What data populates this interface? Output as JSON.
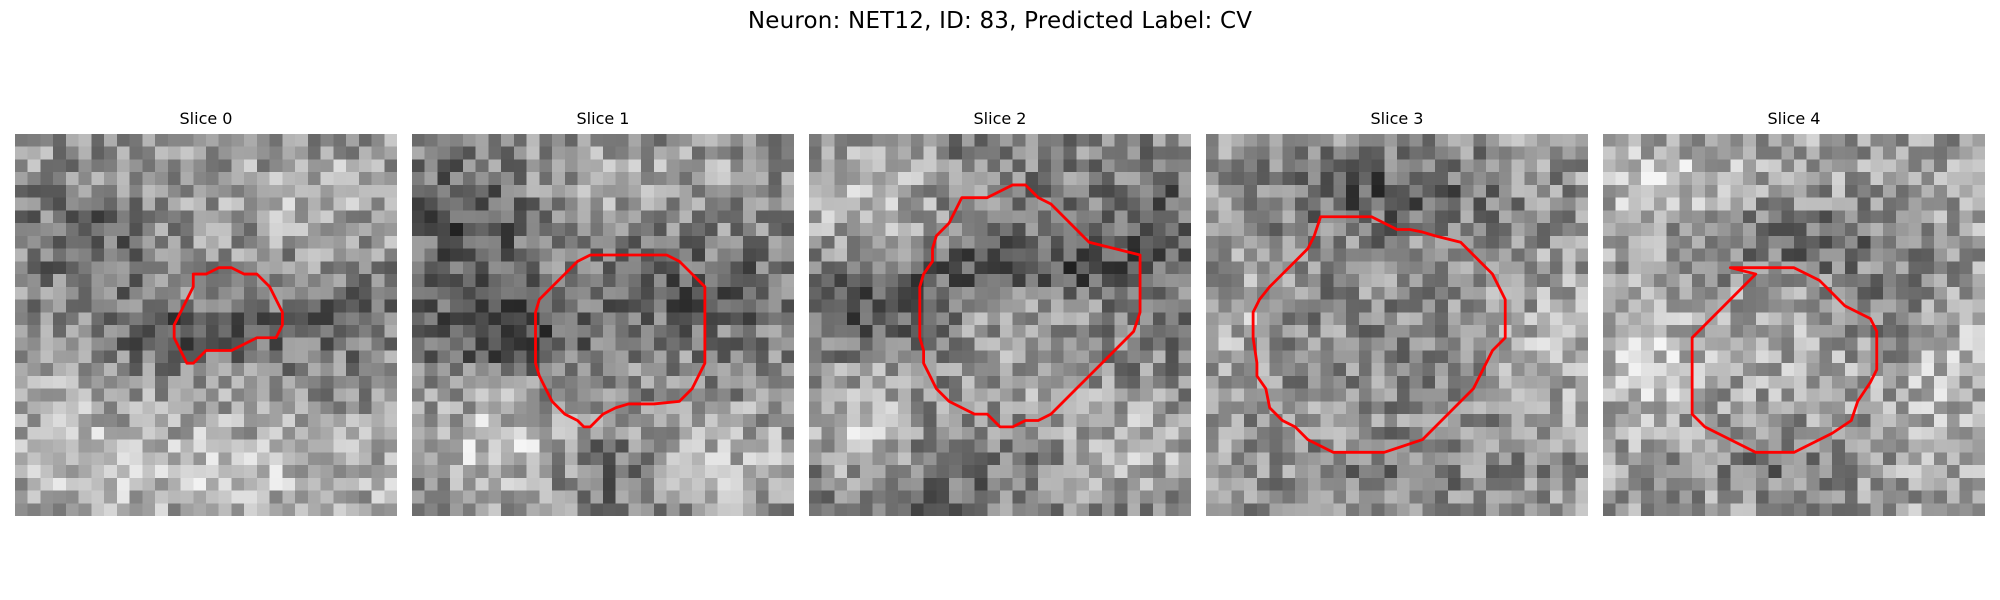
{
  "figure": {
    "title": "Neuron: NET12, ID: 83, Predicted Label: CV"
  },
  "contour_color": "#ff0000",
  "grid_size": 30,
  "slices": [
    {
      "label": "Slice 0",
      "seed": 11,
      "contour": [
        [
          14,
          11
        ],
        [
          15,
          11
        ],
        [
          16,
          10.5
        ],
        [
          17,
          10.5
        ],
        [
          18,
          11
        ],
        [
          19,
          11
        ],
        [
          20,
          12
        ],
        [
          20.5,
          13
        ],
        [
          21,
          14
        ],
        [
          21,
          15
        ],
        [
          20.5,
          16
        ],
        [
          19,
          16
        ],
        [
          18,
          16.5
        ],
        [
          17,
          17
        ],
        [
          16,
          17
        ],
        [
          15,
          17
        ],
        [
          14.5,
          17.5
        ],
        [
          14,
          18
        ],
        [
          13.5,
          18
        ],
        [
          13,
          17
        ],
        [
          12.5,
          16
        ],
        [
          12.5,
          15
        ],
        [
          13,
          14
        ],
        [
          13.5,
          13
        ],
        [
          14,
          12
        ]
      ]
    },
    {
      "label": "Slice 1",
      "seed": 23,
      "contour": [
        [
          14,
          9.5
        ],
        [
          16,
          9.5
        ],
        [
          18,
          9.5
        ],
        [
          20,
          9.5
        ],
        [
          21,
          10
        ],
        [
          22,
          11
        ],
        [
          23,
          12
        ],
        [
          23,
          14
        ],
        [
          23,
          16
        ],
        [
          23,
          18
        ],
        [
          22.5,
          19
        ],
        [
          22,
          20
        ],
        [
          21,
          21
        ],
        [
          19,
          21.2
        ],
        [
          17,
          21.2
        ],
        [
          16,
          21.5
        ],
        [
          15,
          22
        ],
        [
          14,
          23
        ],
        [
          13.5,
          23
        ],
        [
          13,
          22.5
        ],
        [
          12,
          22
        ],
        [
          11,
          21
        ],
        [
          10,
          19
        ],
        [
          9.7,
          18
        ],
        [
          9.7,
          17
        ],
        [
          9.7,
          14
        ],
        [
          10,
          13
        ],
        [
          11,
          12
        ],
        [
          12,
          11
        ],
        [
          13,
          10
        ]
      ]
    },
    {
      "label": "Slice 2",
      "seed": 37,
      "contour": [
        [
          12,
          5
        ],
        [
          14,
          5
        ],
        [
          15,
          4.5
        ],
        [
          16,
          4
        ],
        [
          17,
          4
        ],
        [
          17.5,
          4.5
        ],
        [
          18,
          5
        ],
        [
          19,
          5.5
        ],
        [
          20,
          6.5
        ],
        [
          21,
          7.5
        ],
        [
          22,
          8.5
        ],
        [
          26,
          9.5
        ],
        [
          26,
          12
        ],
        [
          26,
          14
        ],
        [
          25.5,
          15.5
        ],
        [
          24,
          17
        ],
        [
          23,
          18
        ],
        [
          22,
          19
        ],
        [
          21,
          20
        ],
        [
          20,
          21
        ],
        [
          19,
          22
        ],
        [
          18,
          22.5
        ],
        [
          17,
          22.5
        ],
        [
          16,
          23
        ],
        [
          15,
          23
        ],
        [
          14.5,
          22.5
        ],
        [
          14,
          22
        ],
        [
          13,
          22
        ],
        [
          12,
          21.5
        ],
        [
          11,
          21
        ],
        [
          10,
          20
        ],
        [
          9.5,
          19
        ],
        [
          9,
          18
        ],
        [
          9,
          17
        ],
        [
          8.7,
          16
        ],
        [
          8.7,
          14
        ],
        [
          8.7,
          12
        ],
        [
          9,
          11
        ],
        [
          9.7,
          10
        ],
        [
          9.7,
          9
        ],
        [
          10,
          8
        ],
        [
          11,
          7
        ],
        [
          11.5,
          6
        ]
      ]
    },
    {
      "label": "Slice 3",
      "seed": 51,
      "contour": [
        [
          9,
          6.5
        ],
        [
          10,
          6.5
        ],
        [
          12,
          6.5
        ],
        [
          13,
          6.5
        ],
        [
          14,
          7
        ],
        [
          15,
          7.5
        ],
        [
          16,
          7.5
        ],
        [
          17,
          7.7
        ],
        [
          18,
          8
        ],
        [
          20,
          8.5
        ],
        [
          21,
          9.5
        ],
        [
          22,
          10.5
        ],
        [
          22.5,
          11
        ],
        [
          23,
          12
        ],
        [
          23.5,
          13
        ],
        [
          23.5,
          16
        ],
        [
          22.5,
          17
        ],
        [
          22,
          18
        ],
        [
          21.5,
          19
        ],
        [
          21,
          20
        ],
        [
          20,
          21
        ],
        [
          19,
          22
        ],
        [
          18,
          23
        ],
        [
          17,
          24
        ],
        [
          14,
          25
        ],
        [
          12,
          25
        ],
        [
          10,
          25
        ],
        [
          9,
          24.5
        ],
        [
          8,
          24
        ],
        [
          7,
          23
        ],
        [
          6,
          22.5
        ],
        [
          5,
          21.5
        ],
        [
          4.7,
          20
        ],
        [
          4,
          19
        ],
        [
          4,
          18
        ],
        [
          3.7,
          16
        ],
        [
          3.7,
          14
        ],
        [
          4.2,
          13
        ],
        [
          5,
          12
        ],
        [
          6,
          11
        ],
        [
          7,
          10
        ],
        [
          8,
          9
        ],
        [
          8.5,
          8
        ]
      ]
    },
    {
      "label": "Slice 4",
      "seed": 67,
      "contour": [
        [
          10,
          10.5
        ],
        [
          12,
          10.5
        ],
        [
          14,
          10.5
        ],
        [
          15,
          10.5
        ],
        [
          17,
          11.5
        ],
        [
          18,
          12.5
        ],
        [
          19,
          13.5
        ],
        [
          21,
          14.5
        ],
        [
          21.5,
          15.5
        ],
        [
          21.5,
          18.5
        ],
        [
          21,
          19.5
        ],
        [
          20,
          21
        ],
        [
          19.5,
          22.5
        ],
        [
          18,
          23.5
        ],
        [
          17,
          24
        ],
        [
          16,
          24.5
        ],
        [
          15,
          25
        ],
        [
          14,
          25
        ],
        [
          12,
          25
        ],
        [
          11,
          24.5
        ],
        [
          10,
          24
        ],
        [
          9,
          23.5
        ],
        [
          8,
          23
        ],
        [
          7,
          22
        ],
        [
          7,
          20.5
        ],
        [
          7,
          18
        ],
        [
          7,
          16
        ],
        [
          8,
          15
        ],
        [
          9,
          14
        ],
        [
          10,
          13
        ],
        [
          11,
          12
        ],
        [
          12,
          11
        ]
      ]
    }
  ]
}
